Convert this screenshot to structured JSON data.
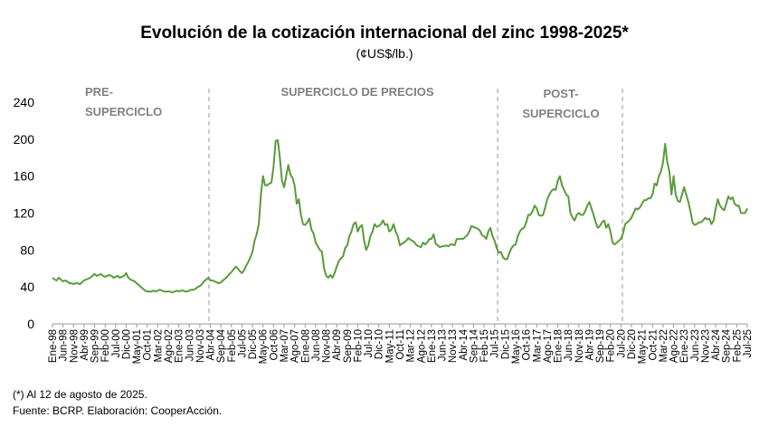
{
  "chart_data": {
    "type": "line",
    "title": "Evolución de la cotización internacional del zinc 1998-2025*",
    "subtitle": "(¢US$/lb.)",
    "annotations": [
      [
        "PRE-",
        "SUPERCICLO"
      ],
      [
        "SUPERCICLO DE PRECIOS"
      ],
      [
        "POST-",
        "SUPERCICLO"
      ]
    ],
    "notes": [
      "(*) Al 12 de agosto de 2025.",
      "Fuente: BCRP. Elaboración: CooperAcción."
    ],
    "categories": [
      "Ene-98",
      null,
      null,
      null,
      null,
      "Jun-98",
      null,
      null,
      null,
      null,
      "Nov-98",
      null,
      null,
      null,
      null,
      "Abr-99",
      null,
      null,
      null,
      null,
      "Sep-99",
      null,
      null,
      null,
      null,
      "Feb-00",
      null,
      null,
      null,
      null,
      "Jul-00",
      null,
      null,
      null,
      null,
      "Dic-00",
      null,
      null,
      null,
      null,
      "May-01",
      null,
      null,
      null,
      null,
      "Oct-01",
      null,
      null,
      null,
      null,
      "Mar-02",
      null,
      null,
      null,
      null,
      "Ago-02",
      null,
      null,
      null,
      null,
      "Ene-03",
      null,
      null,
      null,
      null,
      "Jun-03",
      null,
      null,
      null,
      null,
      "Nov-03",
      null,
      null,
      null,
      null,
      "Abr-04",
      null,
      null,
      null,
      null,
      "Sep-04",
      null,
      null,
      null,
      null,
      "Feb-05",
      null,
      null,
      null,
      null,
      "Jul-05",
      null,
      null,
      null,
      null,
      "Dic-05",
      null,
      null,
      null,
      null,
      "May-06",
      null,
      null,
      null,
      null,
      "Oct-06",
      null,
      null,
      null,
      null,
      "Mar-07",
      null,
      null,
      null,
      null,
      "Ago-07",
      null,
      null,
      null,
      null,
      "Ene-08",
      null,
      null,
      null,
      null,
      "Jun-08",
      null,
      null,
      null,
      null,
      "Nov-08",
      null,
      null,
      null,
      null,
      "Abr-09",
      null,
      null,
      null,
      null,
      "Sep-09",
      null,
      null,
      null,
      null,
      "Feb-10",
      null,
      null,
      null,
      null,
      "Jul-10",
      null,
      null,
      null,
      null,
      "Dic-10",
      null,
      null,
      null,
      null,
      "May-11",
      null,
      null,
      null,
      null,
      "Oct-11",
      null,
      null,
      null,
      null,
      "Mar-12",
      null,
      null,
      null,
      null,
      "Ago-12",
      null,
      null,
      null,
      null,
      "Ene-13",
      null,
      null,
      null,
      null,
      "Jun-13",
      null,
      null,
      null,
      null,
      "Nov-13",
      null,
      null,
      null,
      null,
      "Abr-14",
      null,
      null,
      null,
      null,
      "Sep-14",
      null,
      null,
      null,
      null,
      "Feb-15",
      null,
      null,
      null,
      null,
      "Jul-15",
      null,
      null,
      null,
      null,
      "Dic-15",
      null,
      null,
      null,
      null,
      "May-16",
      null,
      null,
      null,
      null,
      "Oct-16",
      null,
      null,
      null,
      null,
      "Mar-17",
      null,
      null,
      null,
      null,
      "Ago-17",
      null,
      null,
      null,
      null,
      "Ene-18",
      null,
      null,
      null,
      null,
      "Jun-18",
      null,
      null,
      null,
      null,
      "Nov-18",
      null,
      null,
      null,
      null,
      "Abr-19",
      null,
      null,
      null,
      null,
      "Sep-19",
      null,
      null,
      null,
      null,
      "Feb-20",
      null,
      null,
      null,
      null,
      "Jul-20",
      null,
      null,
      null,
      null,
      "Dic-20",
      null,
      null,
      null,
      null,
      "May-21",
      null,
      null,
      null,
      null,
      "Oct-21",
      null,
      null,
      null,
      null,
      "Mar-22",
      null,
      null,
      null,
      null,
      "Ago-22",
      null,
      null,
      null,
      null,
      "Ene-23",
      null,
      null,
      null,
      null,
      "Jun-23",
      null,
      null,
      null,
      null,
      "Nov-23",
      null,
      null,
      null,
      null,
      "Abr-24",
      null,
      null,
      null,
      null,
      "Sep-24",
      null,
      null,
      null,
      null,
      "Feb-25",
      null,
      null,
      null,
      null,
      "Jul-25"
    ],
    "values": [
      50,
      48,
      47,
      50,
      48,
      46,
      47,
      46,
      44,
      44,
      43,
      44,
      44,
      43,
      45,
      47,
      48,
      49,
      50,
      52,
      54,
      52,
      53,
      54,
      52,
      51,
      52,
      53,
      52,
      50,
      51,
      52,
      50,
      51,
      52,
      55,
      50,
      48,
      47,
      46,
      44,
      42,
      40,
      38,
      36,
      35,
      35,
      35,
      36,
      35,
      36,
      37,
      36,
      35,
      35,
      35,
      35,
      34,
      35,
      36,
      35,
      36,
      36,
      35,
      35,
      36,
      37,
      37,
      38,
      40,
      41,
      43,
      46,
      48,
      50,
      47,
      47,
      46,
      45,
      44,
      45,
      47,
      49,
      51,
      54,
      56,
      59,
      62,
      60,
      57,
      55,
      58,
      63,
      67,
      72,
      78,
      90,
      97,
      108,
      140,
      160,
      150,
      150,
      152,
      153,
      170,
      198,
      199,
      180,
      155,
      148,
      160,
      172,
      162,
      158,
      150,
      130,
      135,
      118,
      108,
      107,
      110,
      114,
      102,
      98,
      88,
      84,
      80,
      78,
      60,
      52,
      50,
      53,
      50,
      55,
      62,
      68,
      71,
      73,
      82,
      85,
      95,
      100,
      108,
      110,
      100,
      105,
      107,
      90,
      80,
      85,
      95,
      100,
      108,
      105,
      106,
      108,
      112,
      107,
      108,
      100,
      102,
      108,
      100,
      95,
      85,
      87,
      88,
      90,
      93,
      91,
      90,
      88,
      85,
      84,
      83,
      88,
      86,
      88,
      92,
      92,
      97,
      87,
      85,
      83,
      84,
      84,
      85,
      84,
      86,
      86,
      85,
      92,
      92,
      92,
      92,
      94,
      96,
      100,
      106,
      105,
      104,
      103,
      101,
      96,
      95,
      92,
      100,
      104,
      95,
      90,
      82,
      77,
      78,
      72,
      70,
      70,
      77,
      82,
      85,
      86,
      95,
      100,
      103,
      104,
      110,
      118,
      118,
      122,
      128,
      125,
      118,
      117,
      118,
      126,
      135,
      140,
      144,
      146,
      145,
      155,
      160,
      150,
      145,
      140,
      138,
      120,
      115,
      112,
      118,
      120,
      118,
      118,
      122,
      128,
      132,
      125,
      118,
      110,
      104,
      106,
      110,
      112,
      104,
      108,
      100,
      88,
      86,
      88,
      90,
      92,
      98,
      108,
      110,
      112,
      115,
      120,
      125,
      124,
      126,
      130,
      134,
      134,
      136,
      136,
      140,
      152,
      150,
      160,
      165,
      175,
      195,
      175,
      165,
      140,
      160,
      140,
      133,
      132,
      140,
      148,
      140,
      132,
      122,
      110,
      107,
      108,
      110,
      110,
      112,
      115,
      113,
      114,
      108,
      112,
      125,
      135,
      128,
      125,
      123,
      130,
      138,
      135,
      137,
      130,
      128,
      128,
      120,
      120,
      120,
      125
    ],
    "color": "#5a9a3c",
    "ylim": [
      0,
      240
    ],
    "yticks": [
      0,
      40,
      80,
      120,
      160,
      200,
      240
    ],
    "grid": false
  }
}
